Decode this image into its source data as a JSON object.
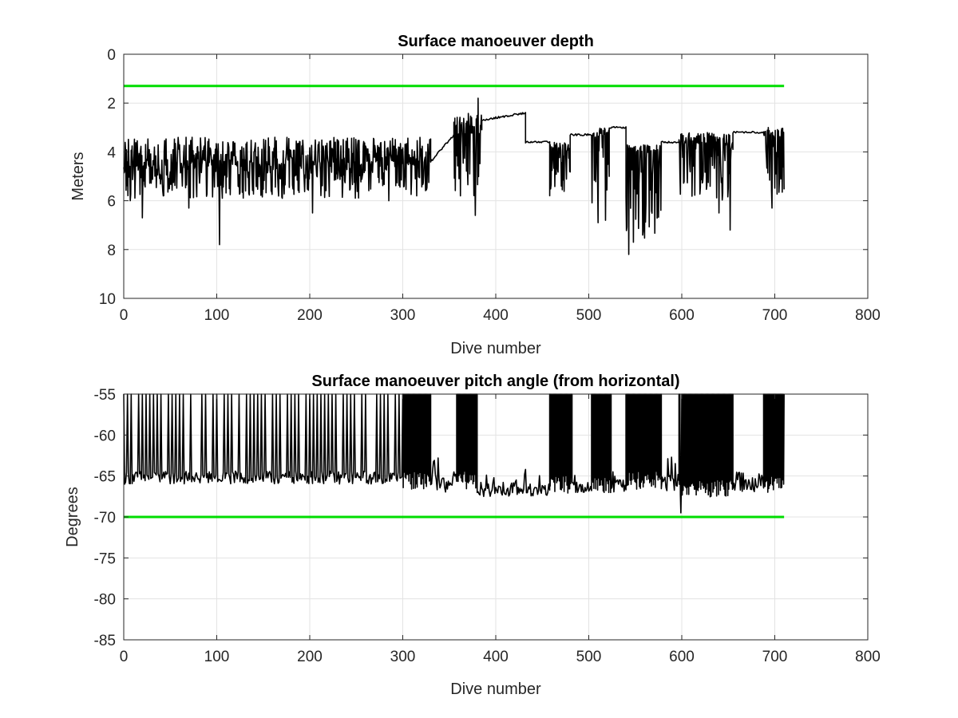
{
  "chart_data": [
    {
      "type": "line",
      "title": "Surface manoeuver depth",
      "xlabel": "Dive number",
      "ylabel": "Meters",
      "xlim": [
        0,
        800
      ],
      "ylim": [
        0,
        10
      ],
      "y_reversed": true,
      "grid": true,
      "x_ticks": [
        "0",
        "100",
        "200",
        "300",
        "400",
        "500",
        "600",
        "700",
        "800"
      ],
      "y_ticks": [
        "0",
        "2",
        "4",
        "6",
        "8",
        "10"
      ],
      "reference_line": {
        "y": 1.3,
        "x_range": [
          0,
          710
        ],
        "color": "#00dd00"
      },
      "series": [
        {
          "color": "#000000",
          "segments": [
            {
              "x_range": [
                0,
                330
              ],
              "baseline": 4.3,
              "low": 3.4,
              "high": 5.9,
              "spikes": [
                [
                  7,
                  6.0
                ],
                [
                  20,
                  6.7
                ],
                [
                  70,
                  6.3
                ],
                [
                  103,
                  7.8
                ],
                [
                  203,
                  6.5
                ],
                [
                  285,
                  6.0
                ],
                [
                  315,
                  5.8
                ]
              ]
            },
            {
              "x_range": [
                330,
                355
              ],
              "baseline": 4.4,
              "trend_to": 3.3
            },
            {
              "x_range": [
                355,
                385
              ],
              "baseline": 3.0,
              "low": 2.4,
              "high": 5.8,
              "spikes": [
                [
                  381,
                  1.8
                ],
                [
                  378,
                  6.6
                ],
                [
                  362,
                  5.8
                ]
              ]
            },
            {
              "x_range": [
                385,
                432
              ],
              "baseline": 2.7,
              "trend_to": 2.4
            },
            {
              "x_range": [
                432,
                458
              ],
              "baseline": 3.6
            },
            {
              "x_range": [
                458,
                480
              ],
              "baseline": 3.7,
              "low": 3.6,
              "high": 5.9
            },
            {
              "x_range": [
                480,
                503
              ],
              "baseline": 3.3
            },
            {
              "x_range": [
                503,
                522
              ],
              "baseline": 3.1,
              "low": 3.0,
              "high": 6.9,
              "spikes": [
                [
                  510,
                  6.9
                ],
                [
                  518,
                  6.8
                ]
              ]
            },
            {
              "x_range": [
                522,
                540
              ],
              "baseline": 3.0
            },
            {
              "x_range": [
                540,
                578
              ],
              "baseline": 3.7,
              "low": 3.7,
              "high": 7.6,
              "spikes": [
                [
                  543,
                  8.2
                ],
                [
                  548,
                  7.7
                ]
              ]
            },
            {
              "x_range": [
                578,
                597
              ],
              "baseline": 3.6
            },
            {
              "x_range": [
                597,
                655
              ],
              "baseline": 3.4,
              "low": 3.2,
              "high": 6.0,
              "spikes": [
                [
                  652,
                  7.2
                ],
                [
                  640,
                  6.5
                ]
              ]
            },
            {
              "x_range": [
                655,
                688
              ],
              "baseline": 3.2
            },
            {
              "x_range": [
                688,
                710
              ],
              "baseline": 3.1,
              "low": 3.0,
              "high": 5.8,
              "spikes": [
                [
                  697,
                  6.3
                ],
                [
                  705,
                  5.2
                ]
              ]
            }
          ]
        }
      ]
    },
    {
      "type": "line",
      "title": "Surface manoeuver pitch angle (from horizontal)",
      "xlabel": "Dive number",
      "ylabel": "Degrees",
      "xlim": [
        0,
        800
      ],
      "ylim": [
        -85,
        -55
      ],
      "grid": true,
      "x_ticks": [
        "0",
        "100",
        "200",
        "300",
        "400",
        "500",
        "600",
        "700",
        "800"
      ],
      "y_ticks": [
        "-55",
        "-60",
        "-65",
        "-70",
        "-75",
        "-80",
        "-85"
      ],
      "reference_line": {
        "y": -70,
        "x_range": [
          0,
          710
        ],
        "color": "#00dd00"
      },
      "series": [
        {
          "color": "#000000",
          "segments": [
            {
              "x_range": [
                0,
                300
              ],
              "baseline": -65.2,
              "mode": "sparse",
              "top": -55
            },
            {
              "x_range": [
                300,
                330
              ],
              "baseline": -65.5,
              "mode": "dense",
              "top": -55
            },
            {
              "x_range": [
                330,
                358
              ],
              "baseline": -65.5,
              "mode": "noise",
              "low": -67.0,
              "high": -62.5
            },
            {
              "x_range": [
                358,
                380
              ],
              "baseline": -65.5,
              "mode": "dense",
              "top": -55
            },
            {
              "x_range": [
                380,
                458
              ],
              "baseline": -66.0,
              "mode": "noise",
              "low": -67.5,
              "high": -64.0
            },
            {
              "x_range": [
                458,
                482
              ],
              "baseline": -66.0,
              "mode": "dense",
              "top": -55
            },
            {
              "x_range": [
                482,
                503
              ],
              "baseline": -66.0,
              "mode": "noise",
              "low": -67.0,
              "high": -64.5
            },
            {
              "x_range": [
                503,
                524
              ],
              "baseline": -66.0,
              "mode": "dense",
              "top": -55
            },
            {
              "x_range": [
                524,
                540
              ],
              "baseline": -65.5,
              "mode": "noise",
              "low": -67.0,
              "high": -62.5
            },
            {
              "x_range": [
                540,
                578
              ],
              "baseline": -65.5,
              "mode": "dense",
              "top": -55
            },
            {
              "x_range": [
                578,
                597
              ],
              "baseline": -65.5,
              "mode": "noise",
              "low": -67.0,
              "high": -62.5
            },
            {
              "x_range": [
                597,
                655
              ],
              "baseline": -66.5,
              "mode": "dense",
              "top": -55,
              "spikes": [
                [
                  599,
                  -69.5
                ]
              ]
            },
            {
              "x_range": [
                655,
                688
              ],
              "baseline": -65.5,
              "mode": "noise",
              "low": -67.0,
              "high": -62.0
            },
            {
              "x_range": [
                688,
                710
              ],
              "baseline": -66.0,
              "mode": "dense",
              "top": -55
            }
          ]
        }
      ]
    }
  ]
}
